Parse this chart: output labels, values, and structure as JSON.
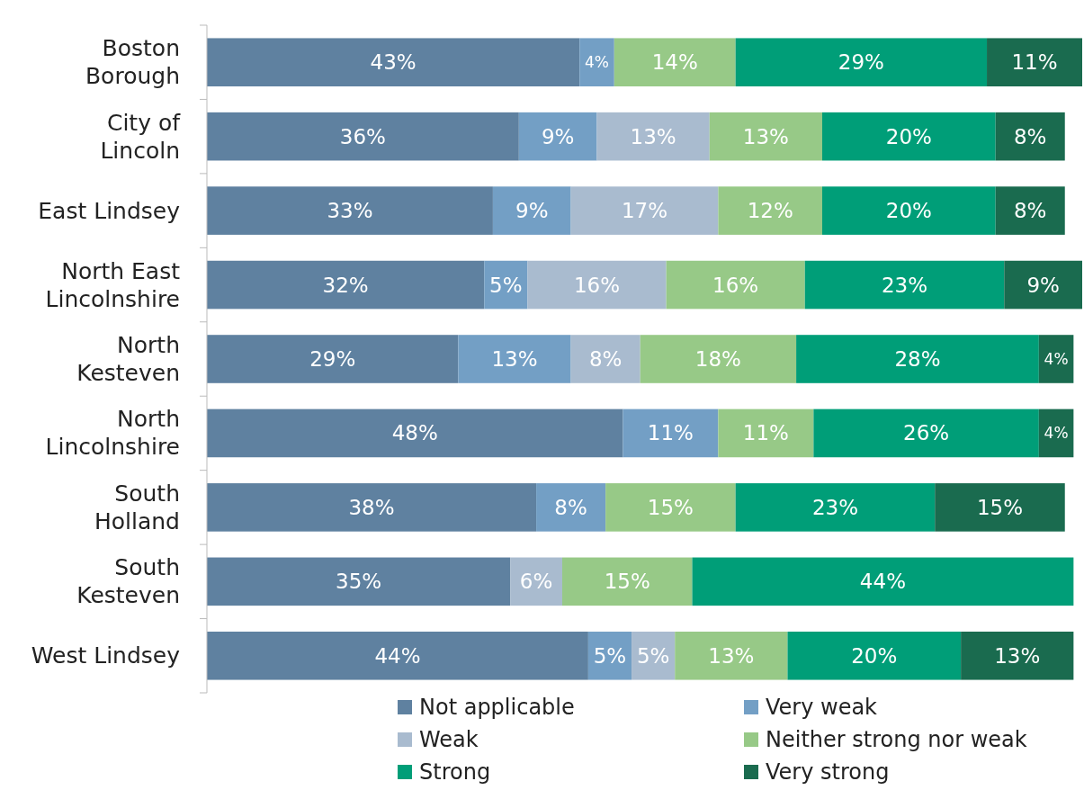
{
  "chart_data": {
    "type": "bar",
    "orientation": "horizontal",
    "stacked": true,
    "legend": "bottom",
    "categories": [
      "Boston Borough",
      "City of Lincoln",
      "East Lindsey",
      "North East Lincolnshire",
      "North Kesteven",
      "North Lincolnshire",
      "South Holland",
      "South Kesteven",
      "West Lindsey"
    ],
    "series": [
      {
        "name": "Not applicable",
        "color": "#5f81a0",
        "values": [
          43,
          36,
          33,
          32,
          29,
          48,
          38,
          35,
          44
        ],
        "value_labels": [
          "43%",
          "36%",
          "33%",
          "32%",
          "29%",
          "48%",
          "38%",
          "35%",
          "44%"
        ]
      },
      {
        "name": "Very weak",
        "color": "#739fc5",
        "values": [
          4,
          9,
          9,
          5,
          13,
          11,
          8,
          null,
          5
        ],
        "value_labels": [
          "4%",
          "9%",
          "9%",
          "5%",
          "13%",
          "11%",
          "8%",
          null,
          "5%"
        ]
      },
      {
        "name": "Weak",
        "color": "#a9bbcf",
        "values": [
          null,
          13,
          17,
          16,
          8,
          null,
          null,
          6,
          5
        ],
        "value_labels": [
          null,
          "13%",
          "17%",
          "16%",
          "8%",
          null,
          null,
          "6%",
          "5%"
        ]
      },
      {
        "name": "Neither strong nor weak",
        "color": "#97c987",
        "values": [
          14,
          13,
          12,
          16,
          18,
          11,
          15,
          15,
          13
        ],
        "value_labels": [
          "14%",
          "13%",
          "12%",
          "16%",
          "18%",
          "11%",
          "15%",
          "15%",
          "13%"
        ]
      },
      {
        "name": "Strong",
        "color": "#009e78",
        "values": [
          29,
          20,
          20,
          23,
          28,
          26,
          23,
          44,
          20
        ],
        "value_labels": [
          "29%",
          "20%",
          "20%",
          "23%",
          "28%",
          "26%",
          "23%",
          "44%",
          "20%"
        ]
      },
      {
        "name": "Very strong",
        "color": "#1a6b4f",
        "values": [
          11,
          8,
          8,
          9,
          4,
          4,
          15,
          null,
          13
        ],
        "value_labels": [
          "11%",
          "8%",
          "8%",
          "9%",
          "4%",
          "4%",
          "15%",
          null,
          "13%"
        ]
      }
    ]
  }
}
